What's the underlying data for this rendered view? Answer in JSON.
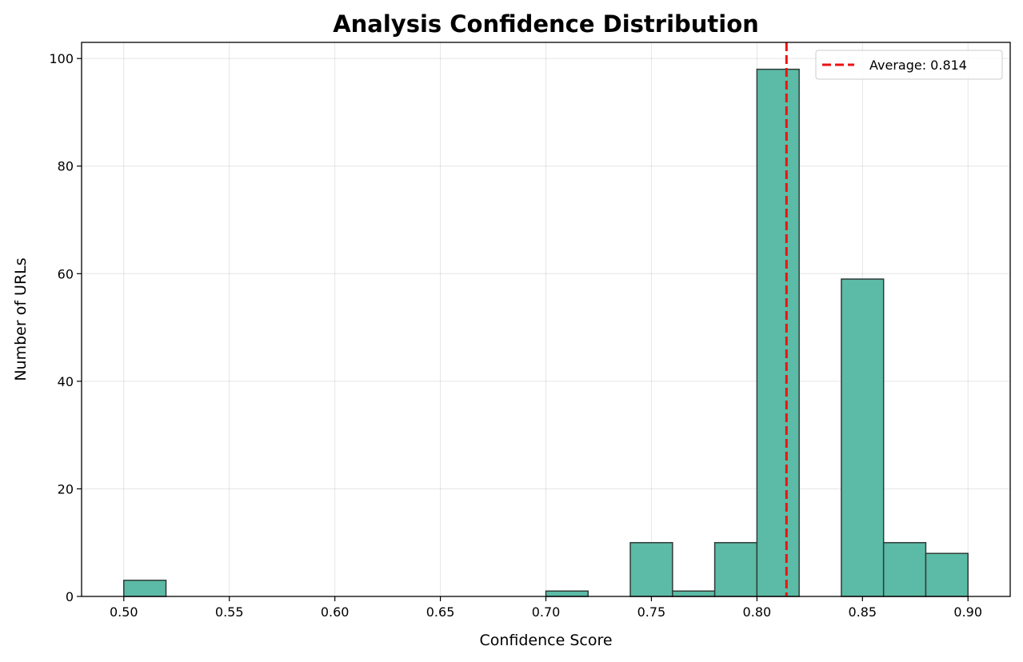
{
  "chart_data": {
    "type": "bar",
    "subtype": "histogram",
    "title": "Analysis Confidence Distribution",
    "xlabel": "Confidence Score",
    "ylabel": "Number of URLs",
    "xlim": [
      0.48,
      0.92
    ],
    "ylim": [
      0,
      103
    ],
    "xticks": [
      0.5,
      0.55,
      0.6,
      0.65,
      0.7,
      0.75,
      0.8,
      0.85,
      0.9
    ],
    "xtick_labels": [
      "0.50",
      "0.55",
      "0.60",
      "0.65",
      "0.70",
      "0.75",
      "0.80",
      "0.85",
      "0.90"
    ],
    "yticks": [
      0,
      20,
      40,
      60,
      80,
      100
    ],
    "ytick_labels": [
      "0",
      "20",
      "40",
      "60",
      "80",
      "100"
    ],
    "bins": [
      {
        "start": 0.5,
        "end": 0.52,
        "count": 3
      },
      {
        "start": 0.7,
        "end": 0.72,
        "count": 1
      },
      {
        "start": 0.74,
        "end": 0.76,
        "count": 10
      },
      {
        "start": 0.76,
        "end": 0.78,
        "count": 1
      },
      {
        "start": 0.78,
        "end": 0.8,
        "count": 10
      },
      {
        "start": 0.8,
        "end": 0.82,
        "count": 98
      },
      {
        "start": 0.84,
        "end": 0.86,
        "count": 59
      },
      {
        "start": 0.86,
        "end": 0.88,
        "count": 10
      },
      {
        "start": 0.88,
        "end": 0.9,
        "count": 8
      }
    ],
    "bar_color": "#5bbba6",
    "bar_edge_color": "#2f3b38",
    "average": {
      "value": 0.814,
      "label": "Average: 0.814",
      "color": "#ee1111",
      "style": "dashed"
    },
    "grid": true,
    "legend_position": "top-right"
  }
}
